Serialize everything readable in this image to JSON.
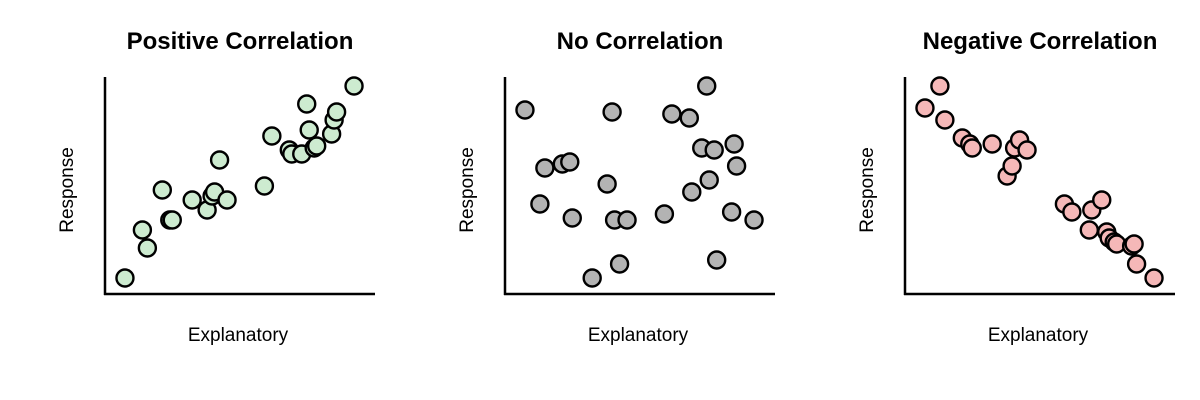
{
  "figure": {
    "panels": [
      {
        "title": "Positive Correlation",
        "xlabel": "Explanatory",
        "ylabel": "Response"
      },
      {
        "title": "No Correlation",
        "xlabel": "Explanatory",
        "ylabel": "Response"
      },
      {
        "title": "Negative Correlation",
        "xlabel": "Explanatory",
        "ylabel": "Response"
      }
    ]
  },
  "chart_data": [
    {
      "type": "scatter",
      "title": "Positive Correlation",
      "xlabel": "Explanatory",
      "ylabel": "Response",
      "xlim": [
        0,
        1
      ],
      "ylim": [
        0,
        1
      ],
      "ticks": false,
      "grid": false,
      "marker_color": "#cdebd0",
      "x": [
        0.04,
        0.11,
        0.13,
        0.19,
        0.22,
        0.23,
        0.31,
        0.37,
        0.39,
        0.4,
        0.42,
        0.45,
        0.6,
        0.63,
        0.7,
        0.71,
        0.75,
        0.77,
        0.78,
        0.8,
        0.81,
        0.87,
        0.88,
        0.89,
        0.96
      ],
      "y": [
        0.04,
        0.28,
        0.19,
        0.48,
        0.33,
        0.33,
        0.43,
        0.38,
        0.45,
        0.47,
        0.63,
        0.43,
        0.5,
        0.75,
        0.68,
        0.66,
        0.66,
        0.91,
        0.78,
        0.69,
        0.7,
        0.76,
        0.83,
        0.87,
        1.0
      ]
    },
    {
      "type": "scatter",
      "title": "No Correlation",
      "xlabel": "Explanatory",
      "ylabel": "Response",
      "xlim": [
        0,
        1
      ],
      "ylim": [
        0,
        1
      ],
      "ticks": false,
      "grid": false,
      "marker_color": "#b3b3b3",
      "x": [
        0.04,
        0.1,
        0.12,
        0.19,
        0.22,
        0.23,
        0.31,
        0.37,
        0.39,
        0.4,
        0.42,
        0.45,
        0.6,
        0.63,
        0.7,
        0.71,
        0.75,
        0.77,
        0.78,
        0.8,
        0.81,
        0.87,
        0.88,
        0.89,
        0.96
      ],
      "y": [
        0.88,
        0.41,
        0.59,
        0.61,
        0.62,
        0.34,
        0.04,
        0.51,
        0.87,
        0.33,
        0.11,
        0.33,
        0.36,
        0.86,
        0.84,
        0.47,
        0.69,
        1.0,
        0.53,
        0.68,
        0.13,
        0.37,
        0.71,
        0.6,
        0.33
      ]
    },
    {
      "type": "scatter",
      "title": "Negative Correlation",
      "xlabel": "Explanatory",
      "ylabel": "Response",
      "xlim": [
        0,
        1
      ],
      "ylim": [
        0,
        1
      ],
      "ticks": false,
      "grid": false,
      "marker_color": "#f5b8b8",
      "x": [
        0.04,
        0.1,
        0.12,
        0.19,
        0.22,
        0.23,
        0.31,
        0.37,
        0.39,
        0.4,
        0.42,
        0.45,
        0.6,
        0.63,
        0.7,
        0.71,
        0.75,
        0.77,
        0.78,
        0.8,
        0.81,
        0.87,
        0.88,
        0.89,
        0.96
      ],
      "y": [
        0.89,
        1.0,
        0.83,
        0.74,
        0.71,
        0.69,
        0.71,
        0.55,
        0.6,
        0.69,
        0.73,
        0.68,
        0.41,
        0.37,
        0.28,
        0.38,
        0.43,
        0.27,
        0.24,
        0.22,
        0.21,
        0.2,
        0.21,
        0.11,
        0.04
      ]
    }
  ]
}
